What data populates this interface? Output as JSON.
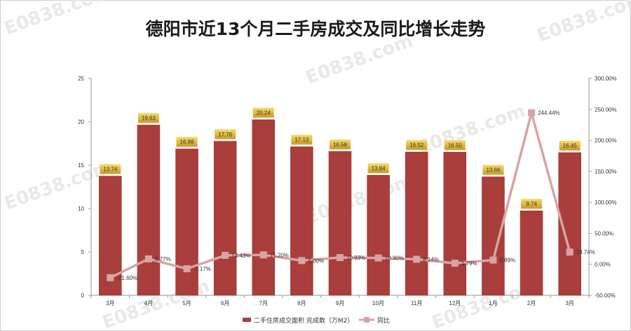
{
  "title": "德阳市近13个月二手房成交及同比增长走势",
  "watermark": "E0838.com",
  "colors": {
    "bar": "#a93e3c",
    "line": "#d9a3a3",
    "label_bg_top": "#f4dc6a",
    "label_bg_bottom": "#c99a22"
  },
  "chart_data": {
    "type": "bar",
    "categories": [
      "3月",
      "4月",
      "5月",
      "6月",
      "7月",
      "8月",
      "9月",
      "10月",
      "11月",
      "12月",
      "1月",
      "2月",
      "3月"
    ],
    "series": [
      {
        "name": "二手住房成交面积 完成数（万M2）",
        "type": "bar",
        "axis": "left",
        "values": [
          13.74,
          19.63,
          16.88,
          17.76,
          20.24,
          17.13,
          16.58,
          13.84,
          16.52,
          16.5,
          13.66,
          9.74,
          16.45
        ],
        "labels": [
          "13.74",
          "19.63",
          "16.88",
          "17.76",
          "20.24",
          "17.13",
          "16.58",
          "13.84",
          "16.52",
          "16.50",
          "13.66",
          "9.74",
          "16.45"
        ]
      },
      {
        "name": "同比",
        "type": "line",
        "axis": "right",
        "values": [
          -21.6,
          8.77,
          -7.17,
          14.43,
          15.2,
          6.0,
          10.93,
          10.3,
          8.14,
          1.79,
          6.89,
          244.44,
          19.74
        ],
        "labels": [
          "-21.60%",
          "8.77%",
          "-7.17%",
          "14.43%",
          "15.20%",
          "6.00%",
          "10.93%",
          "10.30%",
          "8.14%",
          "1.79%",
          "6.89%",
          "244.44%",
          "19.74%"
        ]
      }
    ],
    "y_left": {
      "min": 0,
      "max": 25,
      "ticks": [
        "0",
        "5",
        "10",
        "15",
        "20",
        "25"
      ]
    },
    "y_right": {
      "min": -50,
      "max": 300,
      "ticks": [
        "-50.00%",
        "0.00%",
        "50.00%",
        "100.00%",
        "150.00%",
        "200.00%",
        "250.00%",
        "300.00%"
      ]
    },
    "grid": false,
    "legend_position": "bottom"
  }
}
